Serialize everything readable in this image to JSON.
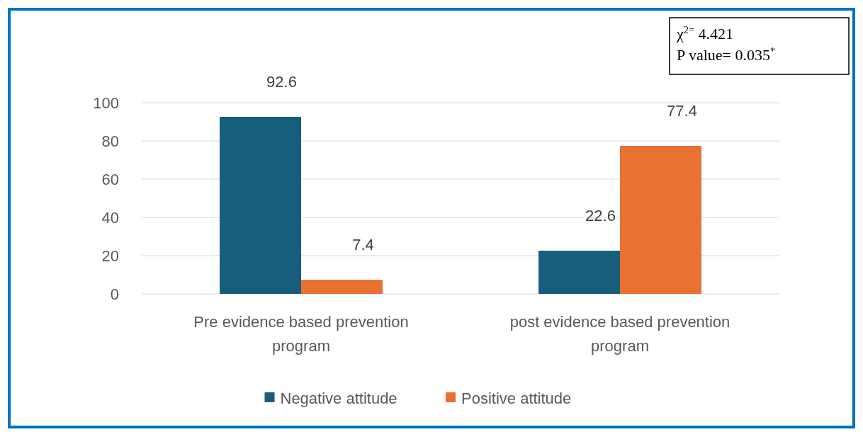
{
  "chart_data": {
    "type": "bar",
    "categories": [
      "Pre evidence based prevention program",
      "post evidence based prevention program"
    ],
    "series": [
      {
        "name": "Negative attitude",
        "color": "#175e7c",
        "values": [
          92.6,
          22.6
        ]
      },
      {
        "name": "Positive attitude",
        "color": "#e97132",
        "values": [
          7.4,
          77.4
        ]
      }
    ],
    "ylim": [
      0,
      100
    ],
    "yticks": [
      0,
      20,
      40,
      60,
      80,
      100
    ],
    "grid": "y",
    "legend": "bottom",
    "data_labels": true,
    "annotations": [
      "χ$^{2=}$ 4.421",
      "P value= 0.035$^{*}$"
    ]
  }
}
